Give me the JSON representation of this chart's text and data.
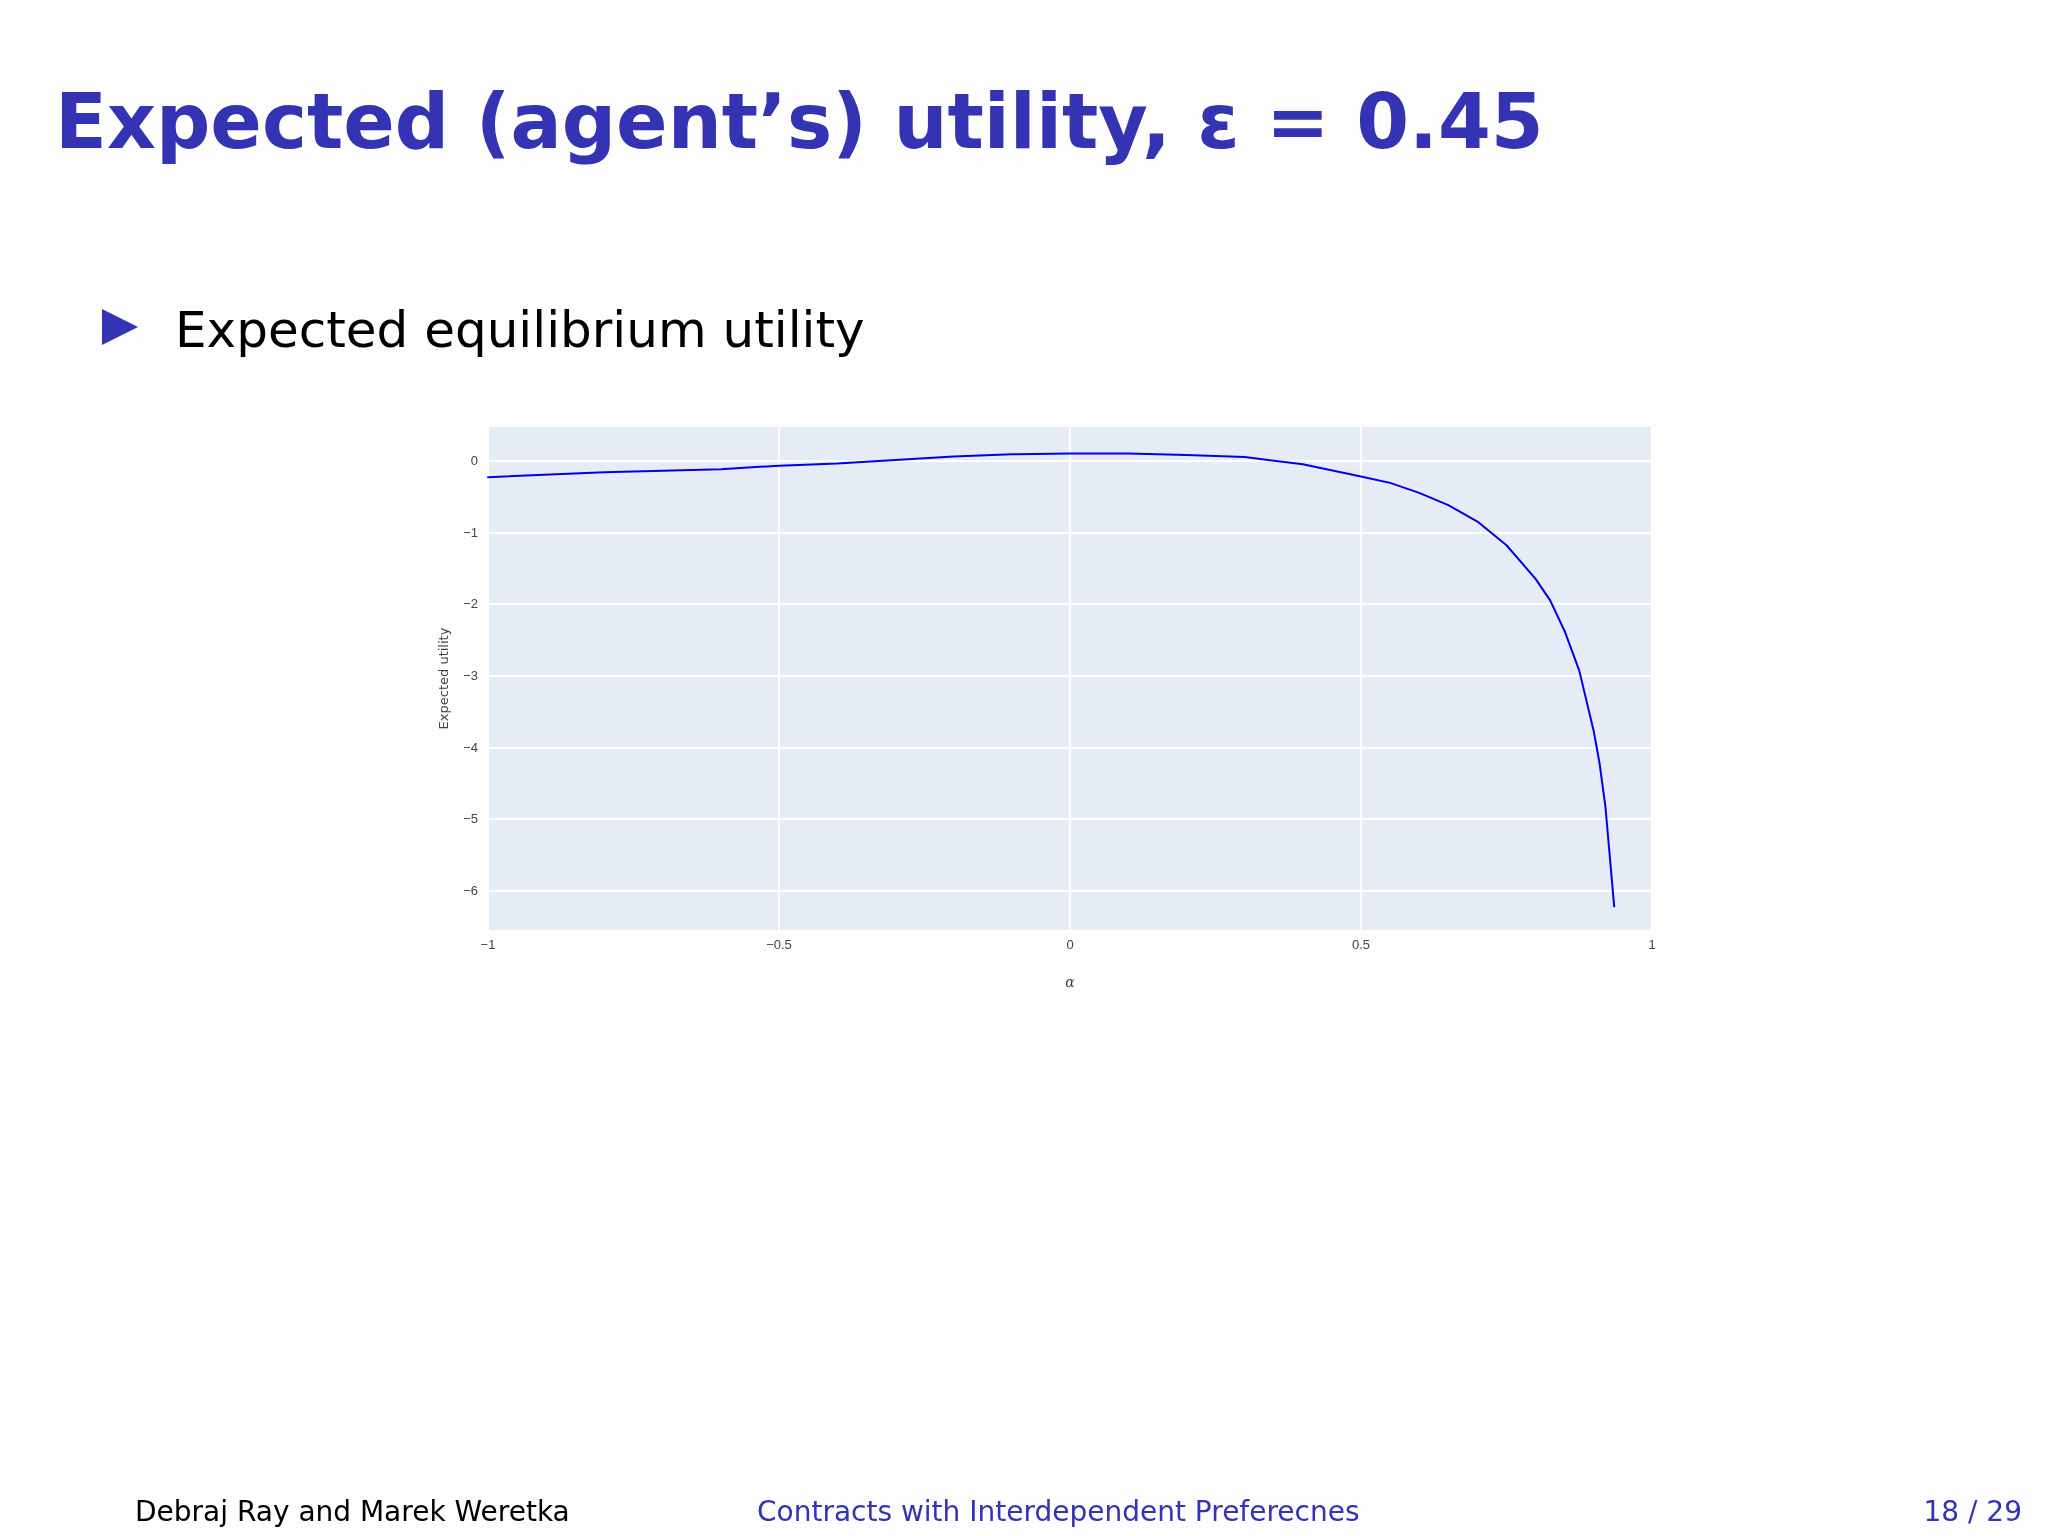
{
  "chart_data": {
    "type": "line",
    "title": "Expected (agent’s) utility, ε = 0.45",
    "subtitle": "Expected equilibrium utility",
    "xlabel": "α",
    "ylabel": "Expected utility",
    "x": [
      -1,
      -0.8,
      -0.6,
      -0.5,
      -0.4,
      -0.2,
      -0.1,
      0,
      0.1,
      0.2,
      0.3,
      0.4,
      0.5,
      0.55,
      0.6,
      0.65,
      0.7,
      0.75,
      0.8,
      0.825,
      0.85,
      0.875,
      0.9,
      0.91,
      0.92,
      0.935
    ],
    "series": [
      {
        "color": "#0000ee",
        "values": [
          -0.23,
          -0.16,
          -0.12,
          -0.07,
          -0.04,
          0.06,
          0.09,
          0.1,
          0.1,
          0.08,
          0.05,
          -0.05,
          -0.22,
          -0.31,
          -0.45,
          -0.62,
          -0.85,
          -1.18,
          -1.65,
          -1.95,
          -2.38,
          -2.93,
          -3.78,
          -4.23,
          -4.83,
          -6.22
        ]
      }
    ],
    "xlim": [
      -1,
      1
    ],
    "xticks": [
      {
        "value": -1,
        "label": "−1"
      },
      {
        "value": -0.5,
        "label": "−0.5"
      },
      0,
      0.5,
      1
    ],
    "ylim": [
      -6.55,
      0.47
    ],
    "yticks": [
      {
        "value": -6,
        "label": "−6"
      },
      {
        "value": -5,
        "label": "−5"
      },
      {
        "value": -4,
        "label": "−4"
      },
      {
        "value": -3,
        "label": "−3"
      },
      {
        "value": -2,
        "label": "−2"
      },
      {
        "value": -1,
        "label": "−1"
      },
      0
    ],
    "grid": true,
    "marker": "none",
    "line_style": "solid",
    "annotations": [
      "Debraj Ray and Marek Weretka",
      "Contracts with Interdependent Preferecnes",
      "18 / 29"
    ]
  }
}
